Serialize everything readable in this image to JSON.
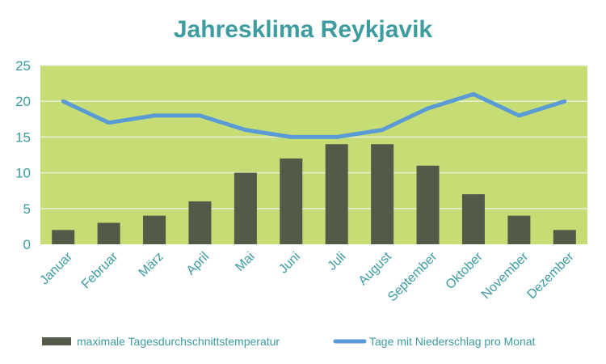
{
  "chart_data": {
    "type": "bar",
    "title": "Jahresklima Reykjavik",
    "xlabel": "",
    "ylabel": "",
    "ylim": [
      0,
      25
    ],
    "yticks": [
      0,
      5,
      10,
      15,
      20,
      25
    ],
    "grid": true,
    "legend_position": "bottom",
    "categories": [
      "Januar",
      "Februar",
      "März",
      "April",
      "Mai",
      "Juni",
      "Juli",
      "August",
      "September",
      "Oktober",
      "November",
      "Dezember"
    ],
    "series": [
      {
        "name": "maximale Tagesdurchschnittstemperatur",
        "type": "bar",
        "color": "#535a48",
        "values": [
          2,
          3,
          4,
          6,
          10,
          12,
          14,
          14,
          11,
          7,
          4,
          2
        ]
      },
      {
        "name": "Tage mit Niederschlag pro Monat",
        "type": "line",
        "color": "#5b9bd5",
        "values": [
          20,
          17,
          18,
          18,
          16,
          15,
          15,
          16,
          19,
          21,
          18,
          20
        ]
      }
    ],
    "colors": {
      "plot_background": "#c5dd74",
      "gridline": "#e6eed0",
      "text": "#3d9ca0"
    }
  }
}
